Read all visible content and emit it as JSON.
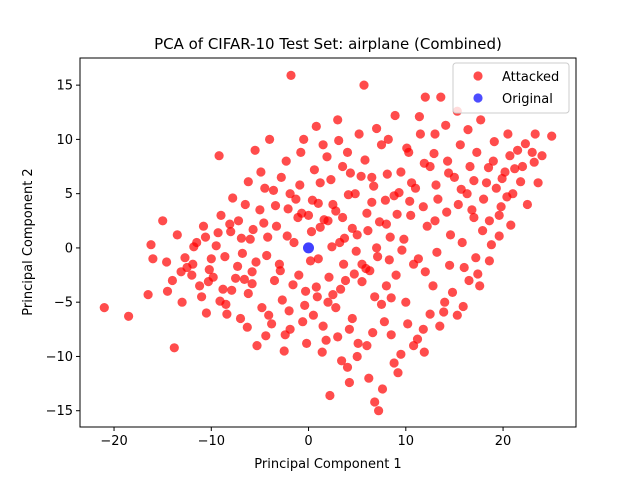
{
  "chart_data": {
    "type": "scatter",
    "title": "PCA of CIFAR-10 Test Set: airplane (Combined)",
    "xlabel": "Principal Component 1",
    "ylabel": "Principal Component 2",
    "xlim": [
      -23.5,
      27.5
    ],
    "ylim": [
      -16.5,
      17.5
    ],
    "xticks": [
      -20,
      -10,
      0,
      10,
      20
    ],
    "yticks": [
      -15,
      -10,
      -5,
      0,
      5,
      10,
      15
    ],
    "grid": false,
    "legend_position": "top-right",
    "series": [
      {
        "name": "Attacked",
        "color": "#ff0000",
        "points": [
          [
            -21.0,
            -5.5
          ],
          [
            -18.5,
            -6.3
          ],
          [
            -16.5,
            -4.3
          ],
          [
            -16.2,
            0.3
          ],
          [
            -16.0,
            -1.0
          ],
          [
            -15.0,
            2.5
          ],
          [
            -14.5,
            -4.0
          ],
          [
            -14.0,
            -3.0
          ],
          [
            -13.8,
            -9.2
          ],
          [
            -13.5,
            1.2
          ],
          [
            -13.0,
            -5.0
          ],
          [
            -12.5,
            -1.8
          ],
          [
            -12.0,
            -2.5
          ],
          [
            -11.5,
            0.5
          ],
          [
            -11.2,
            -3.5
          ],
          [
            -11.0,
            -4.5
          ],
          [
            -10.8,
            2.0
          ],
          [
            -10.5,
            -6.0
          ],
          [
            -10.2,
            -2.0
          ],
          [
            -10.0,
            -1.0
          ],
          [
            -9.5,
            0.2
          ],
          [
            -9.2,
            8.5
          ],
          [
            -9.0,
            3.0
          ],
          [
            -8.8,
            -3.8
          ],
          [
            -8.5,
            -5.2
          ],
          [
            -8.0,
            1.5
          ],
          [
            -7.5,
            -2.8
          ],
          [
            -7.2,
            2.5
          ],
          [
            -7.0,
            -6.5
          ],
          [
            -6.8,
            -0.5
          ],
          [
            -6.5,
            4.0
          ],
          [
            -6.2,
            -4.2
          ],
          [
            -6.0,
            0.8
          ],
          [
            -5.8,
            -2.2
          ],
          [
            -5.5,
            9.0
          ],
          [
            -5.3,
            -9.0
          ],
          [
            -5.0,
            3.5
          ],
          [
            -4.8,
            -5.5
          ],
          [
            -4.5,
            5.5
          ],
          [
            -4.2,
            1.0
          ],
          [
            -4.0,
            10.0
          ],
          [
            -3.8,
            -7.0
          ],
          [
            -3.5,
            -3.0
          ],
          [
            -3.3,
            2.0
          ],
          [
            -3.0,
            -1.5
          ],
          [
            -2.8,
            6.5
          ],
          [
            -2.5,
            -9.5
          ],
          [
            -2.3,
            8.0
          ],
          [
            -2.0,
            -5.8
          ],
          [
            -1.8,
            15.9
          ],
          [
            -1.5,
            0.5
          ],
          [
            -1.3,
            4.5
          ],
          [
            -1.0,
            -2.5
          ],
          [
            -0.8,
            8.8
          ],
          [
            -0.5,
            10.0
          ],
          [
            -0.3,
            -4.0
          ],
          [
            0.0,
            3.0
          ],
          [
            0.3,
            1.5
          ],
          [
            0.5,
            -6.2
          ],
          [
            0.8,
            11.2
          ],
          [
            1.0,
            -1.0
          ],
          [
            1.2,
            6.0
          ],
          [
            1.5,
            9.5
          ],
          [
            1.8,
            -8.5
          ],
          [
            2.0,
            2.5
          ],
          [
            2.2,
            -13.6
          ],
          [
            2.5,
            4.0
          ],
          [
            2.8,
            -5.5
          ],
          [
            3.0,
            11.8
          ],
          [
            3.2,
            0.5
          ],
          [
            3.5,
            7.5
          ],
          [
            3.8,
            -3.0
          ],
          [
            4.0,
            8.8
          ],
          [
            4.2,
            -7.5
          ],
          [
            4.5,
            1.8
          ],
          [
            4.8,
            5.0
          ],
          [
            5.0,
            -10.0
          ],
          [
            5.2,
            10.5
          ],
          [
            5.5,
            -1.5
          ],
          [
            5.7,
            15.0
          ],
          [
            6.0,
            3.2
          ],
          [
            6.2,
            -12.0
          ],
          [
            6.5,
            6.5
          ],
          [
            6.8,
            -4.5
          ],
          [
            7.0,
            0.0
          ],
          [
            7.2,
            -15.0
          ],
          [
            7.5,
            9.5
          ],
          [
            7.8,
            -6.8
          ],
          [
            8.0,
            2.2
          ],
          [
            8.2,
            10.0
          ],
          [
            8.5,
            -8.0
          ],
          [
            8.8,
            4.8
          ],
          [
            9.0,
            -2.5
          ],
          [
            9.2,
            -11.5
          ],
          [
            9.5,
            7.0
          ],
          [
            9.8,
            0.8
          ],
          [
            10.0,
            -5.0
          ],
          [
            10.3,
            8.8
          ],
          [
            10.5,
            3.0
          ],
          [
            10.8,
            -9.0
          ],
          [
            11.0,
            5.5
          ],
          [
            11.3,
            -1.0
          ],
          [
            11.5,
            10.5
          ],
          [
            11.8,
            -7.5
          ],
          [
            12.0,
            13.9
          ],
          [
            12.2,
            2.0
          ],
          [
            12.5,
            7.5
          ],
          [
            12.8,
            -3.5
          ],
          [
            13.0,
            10.5
          ],
          [
            13.3,
            4.5
          ],
          [
            13.6,
            13.9
          ],
          [
            14.0,
            -5.0
          ],
          [
            14.3,
            8.0
          ],
          [
            14.6,
            1.2
          ],
          [
            15.0,
            6.5
          ],
          [
            15.3,
            -6.2
          ],
          [
            15.6,
            9.5
          ],
          [
            16.0,
            -1.8
          ],
          [
            16.3,
            5.0
          ],
          [
            16.6,
            7.5
          ],
          [
            17.0,
            2.8
          ],
          [
            17.3,
            8.8
          ],
          [
            17.6,
            -3.5
          ],
          [
            18.0,
            4.5
          ],
          [
            18.3,
            6.0
          ],
          [
            18.6,
            2.5
          ],
          [
            19.0,
            8.0
          ],
          [
            19.3,
            5.5
          ],
          [
            19.8,
            3.8
          ],
          [
            20.2,
            7.0
          ],
          [
            20.5,
            10.5
          ],
          [
            21.0,
            5.0
          ],
          [
            21.5,
            9.0
          ],
          [
            22.0,
            7.5
          ],
          [
            22.5,
            4.0
          ],
          [
            23.0,
            8.8
          ],
          [
            23.3,
            10.5
          ],
          [
            23.6,
            6.0
          ],
          [
            24.0,
            8.5
          ],
          [
            25.0,
            10.3
          ],
          [
            3.0,
            -8.2
          ],
          [
            4.5,
            -6.5
          ],
          [
            6.0,
            -9.0
          ],
          [
            7.5,
            -5.2
          ],
          [
            2.5,
            -4.3
          ],
          [
            5.5,
            -3.1
          ],
          [
            8.5,
            -4.6
          ],
          [
            1.5,
            -7.2
          ],
          [
            4.0,
            -11.0
          ],
          [
            6.8,
            -14.2
          ],
          [
            7.6,
            -13.0
          ],
          [
            4.2,
            -12.4
          ],
          [
            9.5,
            -9.8
          ],
          [
            11.2,
            -8.4
          ],
          [
            13.5,
            -7.2
          ],
          [
            14.8,
            -4.1
          ],
          [
            16.5,
            -3.0
          ],
          [
            12.5,
            -6.1
          ],
          [
            10.2,
            -7.0
          ],
          [
            8.0,
            -3.5
          ],
          [
            6.3,
            -2.1
          ],
          [
            3.6,
            -1.5
          ],
          [
            2.1,
            -2.7
          ],
          [
            0.8,
            -3.6
          ],
          [
            -0.6,
            -6.8
          ],
          [
            -1.9,
            -7.5
          ],
          [
            -2.7,
            -4.8
          ],
          [
            -4.1,
            -6.2
          ],
          [
            -5.8,
            -3.3
          ],
          [
            -7.3,
            -1.7
          ],
          [
            -8.6,
            -0.8
          ],
          [
            -9.8,
            -2.7
          ],
          [
            -12.7,
            -0.9
          ],
          [
            -11.8,
            0.1
          ],
          [
            -14.6,
            -1.3
          ],
          [
            1.0,
            4.1
          ],
          [
            2.3,
            6.3
          ],
          [
            3.5,
            2.8
          ],
          [
            5.0,
            1.2
          ],
          [
            6.5,
            4.2
          ],
          [
            8.1,
            6.8
          ],
          [
            9.3,
            5.1
          ],
          [
            10.6,
            6.0
          ],
          [
            11.8,
            3.8
          ],
          [
            13.0,
            2.5
          ],
          [
            14.2,
            3.3
          ],
          [
            15.4,
            4.0
          ],
          [
            16.8,
            3.5
          ],
          [
            17.9,
            1.6
          ],
          [
            19.6,
            3.0
          ],
          [
            20.8,
            2.1
          ],
          [
            18.8,
            0.3
          ],
          [
            17.2,
            -0.9
          ],
          [
            15.8,
            0.5
          ],
          [
            14.5,
            -1.6
          ],
          [
            13.2,
            -0.4
          ],
          [
            12.0,
            -2.2
          ],
          [
            10.8,
            -1.5
          ],
          [
            9.6,
            -0.2
          ],
          [
            8.4,
            1.0
          ],
          [
            7.3,
            2.4
          ],
          [
            6.1,
            1.6
          ],
          [
            4.9,
            -0.3
          ],
          [
            3.7,
            0.9
          ],
          [
            2.4,
            0.1
          ],
          [
            1.2,
            1.9
          ],
          [
            0.2,
            -1.2
          ],
          [
            -1.1,
            2.8
          ],
          [
            -2.2,
            1.1
          ],
          [
            -3.4,
            3.9
          ],
          [
            -4.6,
            2.3
          ],
          [
            -5.7,
            1.7
          ],
          [
            -6.9,
            0.9
          ],
          [
            -8.1,
            2.2
          ],
          [
            -9.3,
            1.4
          ],
          [
            -10.6,
            1.0
          ],
          [
            -11.9,
            -1.5
          ],
          [
            -13.1,
            -2.2
          ],
          [
            -7.8,
            4.6
          ],
          [
            -6.2,
            6.1
          ],
          [
            -4.9,
            7.0
          ],
          [
            -3.6,
            5.3
          ],
          [
            -2.1,
            3.6
          ],
          [
            -0.9,
            5.8
          ],
          [
            0.6,
            7.2
          ],
          [
            1.9,
            8.4
          ],
          [
            3.1,
            9.9
          ],
          [
            4.3,
            6.9
          ],
          [
            5.8,
            8.1
          ],
          [
            7.0,
            11.0
          ],
          [
            8.9,
            12.2
          ],
          [
            10.1,
            9.2
          ],
          [
            11.4,
            12.1
          ],
          [
            12.9,
            8.7
          ],
          [
            14.1,
            11.3
          ],
          [
            15.3,
            12.6
          ],
          [
            16.4,
            10.9
          ],
          [
            17.7,
            11.8
          ],
          [
            19.1,
            9.8
          ],
          [
            20.7,
            8.5
          ],
          [
            22.3,
            9.6
          ],
          [
            21.2,
            7.3
          ],
          [
            19.9,
            6.4
          ],
          [
            18.5,
            7.4
          ],
          [
            17.0,
            6.2
          ],
          [
            15.7,
            5.4
          ],
          [
            14.4,
            6.9
          ],
          [
            13.1,
            5.8
          ],
          [
            11.9,
            7.8
          ],
          [
            10.4,
            4.3
          ],
          [
            9.1,
            3.1
          ],
          [
            7.9,
            4.4
          ],
          [
            6.7,
            5.7
          ],
          [
            5.4,
            6.6
          ],
          [
            4.1,
            4.9
          ],
          [
            2.8,
            3.4
          ],
          [
            1.6,
            2.6
          ],
          [
            0.4,
            4.4
          ],
          [
            -0.7,
            3.2
          ],
          [
            -1.9,
            5.0
          ],
          [
            8.3,
            -1.1
          ],
          [
            7.1,
            -0.8
          ],
          [
            5.9,
            -1.9
          ],
          [
            4.7,
            -2.4
          ],
          [
            3.3,
            -3.8
          ],
          [
            2.0,
            -5.0
          ],
          [
            0.9,
            -4.5
          ],
          [
            -0.4,
            -5.3
          ],
          [
            -1.6,
            -3.4
          ],
          [
            -2.9,
            -2.1
          ],
          [
            -4.3,
            -0.7
          ],
          [
            -5.4,
            -1.3
          ],
          [
            -6.6,
            -2.9
          ],
          [
            -7.9,
            -3.9
          ],
          [
            -9.1,
            -4.9
          ],
          [
            -10.3,
            -3.1
          ],
          [
            -8.4,
            -6.1
          ],
          [
            -6.3,
            -7.3
          ],
          [
            -4.4,
            -8.1
          ],
          [
            -2.4,
            -8.0
          ],
          [
            -0.2,
            -8.8
          ],
          [
            1.4,
            -9.6
          ],
          [
            3.4,
            -10.4
          ],
          [
            5.1,
            -8.8
          ],
          [
            6.6,
            -7.8
          ],
          [
            8.8,
            -10.6
          ],
          [
            11.9,
            -9.6
          ],
          [
            13.9,
            -5.9
          ],
          [
            15.9,
            -5.4
          ],
          [
            17.4,
            -2.4
          ],
          [
            18.6,
            -1.2
          ],
          [
            19.6,
            1.1
          ],
          [
            20.4,
            4.7
          ],
          [
            21.8,
            6.1
          ],
          [
            23.2,
            7.9
          ]
        ]
      },
      {
        "name": "Original",
        "color": "#0000ff",
        "points": [
          [
            0.0,
            0.0
          ]
        ]
      }
    ]
  }
}
